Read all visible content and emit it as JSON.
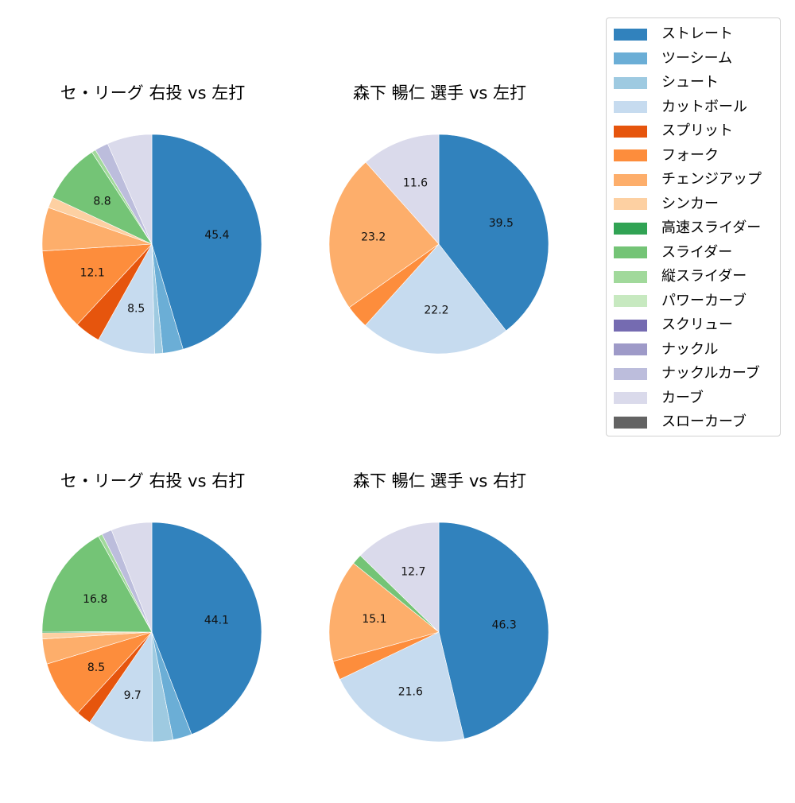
{
  "legend": {
    "items": [
      {
        "label": "ストレート",
        "color": "#3182bd"
      },
      {
        "label": "ツーシーム",
        "color": "#6baed6"
      },
      {
        "label": "シュート",
        "color": "#9ecae1"
      },
      {
        "label": "カットボール",
        "color": "#c6dbef"
      },
      {
        "label": "スプリット",
        "color": "#e6550d"
      },
      {
        "label": "フォーク",
        "color": "#fd8d3c"
      },
      {
        "label": "チェンジアップ",
        "color": "#fdae6b"
      },
      {
        "label": "シンカー",
        "color": "#fdd0a2"
      },
      {
        "label": "高速スライダー",
        "color": "#31a354"
      },
      {
        "label": "スライダー",
        "color": "#74c476"
      },
      {
        "label": "縦スライダー",
        "color": "#a1d99b"
      },
      {
        "label": "パワーカーブ",
        "color": "#c7e9c0"
      },
      {
        "label": "スクリュー",
        "color": "#756bb1"
      },
      {
        "label": "ナックル",
        "color": "#9e9ac8"
      },
      {
        "label": "ナックルカーブ",
        "color": "#bcbddc"
      },
      {
        "label": "カーブ",
        "color": "#dadaeb"
      },
      {
        "label": "スローカーブ",
        "color": "#636363"
      }
    ]
  },
  "panels": [
    {
      "title": "セ・リーグ 右投 vs 左打"
    },
    {
      "title": "森下 暢仁 選手 vs 左打"
    },
    {
      "title": "セ・リーグ 右投 vs 右打"
    },
    {
      "title": "森下 暢仁 選手 vs 右打"
    }
  ],
  "chart_data": [
    {
      "type": "pie",
      "title": "セ・リーグ 右投 vs 左打",
      "start_angle": 90,
      "direction": "clockwise",
      "label_threshold": 8,
      "slices": [
        {
          "label": "ストレート",
          "value": 45.4,
          "shown": "45.4"
        },
        {
          "label": "ツーシーム",
          "value": 3.0
        },
        {
          "label": "シュート",
          "value": 1.2
        },
        {
          "label": "カットボール",
          "value": 8.5,
          "shown": "8.5"
        },
        {
          "label": "スプリット",
          "value": 3.8
        },
        {
          "label": "フォーク",
          "value": 12.1,
          "shown": "12.1"
        },
        {
          "label": "チェンジアップ",
          "value": 6.4
        },
        {
          "label": "シンカー",
          "value": 1.6
        },
        {
          "label": "スライダー",
          "value": 8.8,
          "shown": "8.8"
        },
        {
          "label": "縦スライダー",
          "value": 0.6
        },
        {
          "label": "ナックルカーブ",
          "value": 2.0
        },
        {
          "label": "カーブ",
          "value": 6.6
        }
      ]
    },
    {
      "type": "pie",
      "title": "森下 暢仁 選手 vs 左打",
      "start_angle": 90,
      "direction": "clockwise",
      "slices": [
        {
          "label": "ストレート",
          "value": 39.5,
          "shown": "39.5"
        },
        {
          "label": "カットボール",
          "value": 22.2,
          "shown": "22.2"
        },
        {
          "label": "フォーク",
          "value": 3.5
        },
        {
          "label": "チェンジアップ",
          "value": 23.2,
          "shown": "23.2"
        },
        {
          "label": "カーブ",
          "value": 11.6,
          "shown": "11.6"
        }
      ]
    },
    {
      "type": "pie",
      "title": "セ・リーグ 右投 vs 右打",
      "start_angle": 90,
      "direction": "clockwise",
      "slices": [
        {
          "label": "ストレート",
          "value": 44.1,
          "shown": "44.1"
        },
        {
          "label": "ツーシーム",
          "value": 2.8
        },
        {
          "label": "シュート",
          "value": 3.0
        },
        {
          "label": "カットボール",
          "value": 9.7,
          "shown": "9.7"
        },
        {
          "label": "スプリット",
          "value": 2.2
        },
        {
          "label": "フォーク",
          "value": 8.5,
          "shown": "8.5"
        },
        {
          "label": "チェンジアップ",
          "value": 3.7
        },
        {
          "label": "シンカー",
          "value": 0.9
        },
        {
          "label": "高速スライダー",
          "value": 0.2
        },
        {
          "label": "スライダー",
          "value": 16.8,
          "shown": "16.8"
        },
        {
          "label": "縦スライダー",
          "value": 0.6
        },
        {
          "label": "ナックルカーブ",
          "value": 1.5
        },
        {
          "label": "カーブ",
          "value": 6.0
        }
      ]
    },
    {
      "type": "pie",
      "title": "森下 暢仁 選手 vs 右打",
      "start_angle": 90,
      "direction": "clockwise",
      "slices": [
        {
          "label": "ストレート",
          "value": 46.3,
          "shown": "46.3"
        },
        {
          "label": "カットボール",
          "value": 21.6,
          "shown": "21.6"
        },
        {
          "label": "フォーク",
          "value": 2.8
        },
        {
          "label": "チェンジアップ",
          "value": 15.1,
          "shown": "15.1"
        },
        {
          "label": "スライダー",
          "value": 1.5
        },
        {
          "label": "カーブ",
          "value": 12.7,
          "shown": "12.7"
        }
      ]
    }
  ]
}
